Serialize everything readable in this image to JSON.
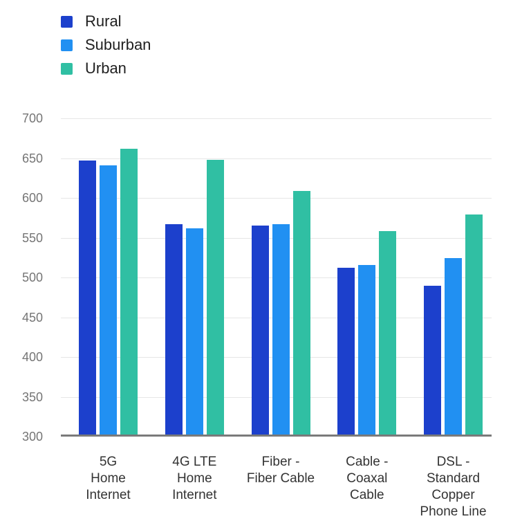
{
  "chart_data": {
    "type": "bar",
    "categories": [
      "5G Home Internet",
      "4G LTE Home Internet",
      "Fiber - Fiber Cable",
      "Cable - Coaxal Cable",
      "DSL - Standard Copper Phone Line"
    ],
    "category_display": [
      "5G\nHome\nInternet",
      "4G LTE\nHome\nInternet",
      "Fiber -\nFiber Cable",
      "Cable -\nCoaxal\nCable",
      "DSL -\nStandard\nCopper\nPhone Line"
    ],
    "series": [
      {
        "name": "Rural",
        "color": "#1c40cc",
        "values": [
          647,
          567,
          565,
          512,
          490
        ]
      },
      {
        "name": "Suburban",
        "color": "#2190f2",
        "values": [
          641,
          562,
          567,
          516,
          524
        ]
      },
      {
        "name": "Urban",
        "color": "#30bfa3",
        "values": [
          662,
          648,
          609,
          558,
          579
        ]
      }
    ],
    "ylim": [
      300,
      700
    ],
    "yticks": [
      700,
      650,
      600,
      550,
      500,
      450,
      400,
      350,
      300
    ],
    "grid": true,
    "legend_position": "top-left"
  },
  "colors": {
    "background": "#ffffff",
    "axis_line": "#7a7a7a",
    "gridline": "#e6e6e6",
    "ytick_text": "#757575",
    "xlabel_text": "#333333",
    "legend_text": "#1f1f1f"
  }
}
